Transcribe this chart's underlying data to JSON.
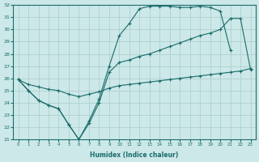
{
  "xlabel": "Humidex (Indice chaleur)",
  "bg_color": "#cce8e8",
  "line_color": "#1a6b6b",
  "grid_color": "#aacccc",
  "xlim": [
    -0.5,
    23.5
  ],
  "ylim": [
    21,
    32
  ],
  "xticks": [
    0,
    1,
    2,
    3,
    4,
    5,
    6,
    7,
    8,
    9,
    10,
    11,
    12,
    13,
    14,
    15,
    16,
    17,
    18,
    19,
    20,
    21,
    22,
    23
  ],
  "yticks": [
    21,
    22,
    23,
    24,
    25,
    26,
    27,
    28,
    29,
    30,
    31,
    32
  ],
  "series": [
    {
      "x": [
        0,
        1,
        2,
        3,
        4,
        5,
        6,
        7,
        8,
        9,
        10,
        11,
        12,
        13,
        14,
        15,
        16,
        17,
        18,
        19,
        20,
        21
      ],
      "y": [
        25.9,
        25.0,
        24.2,
        23.8,
        23.5,
        22.2,
        21.0,
        22.5,
        24.3,
        27.0,
        29.5,
        30.5,
        31.7,
        31.9,
        31.9,
        31.9,
        31.8,
        31.8,
        31.9,
        31.8,
        31.5,
        28.3
      ]
    },
    {
      "x": [
        0,
        1,
        2,
        3,
        4,
        5,
        6,
        7,
        8,
        9,
        10,
        11,
        12,
        13,
        14,
        15,
        16,
        17,
        18,
        19,
        20,
        21,
        22,
        23
      ],
      "y": [
        25.9,
        25.0,
        24.2,
        23.8,
        23.5,
        22.2,
        21.0,
        22.3,
        24.0,
        26.5,
        27.3,
        27.5,
        27.8,
        28.0,
        28.3,
        28.6,
        28.9,
        29.2,
        29.5,
        29.7,
        30.0,
        30.9,
        30.9,
        26.7
      ]
    },
    {
      "x": [
        0,
        1,
        2,
        3,
        4,
        5,
        6,
        7,
        8,
        9,
        10,
        11,
        12,
        13,
        14,
        15,
        16,
        17,
        18,
        19,
        20,
        21,
        22,
        23
      ],
      "y": [
        25.9,
        25.5,
        25.3,
        25.1,
        25.0,
        24.7,
        24.5,
        24.7,
        24.9,
        25.2,
        25.4,
        25.5,
        25.6,
        25.7,
        25.8,
        25.9,
        26.0,
        26.1,
        26.2,
        26.3,
        26.4,
        26.5,
        26.6,
        26.8
      ]
    }
  ]
}
